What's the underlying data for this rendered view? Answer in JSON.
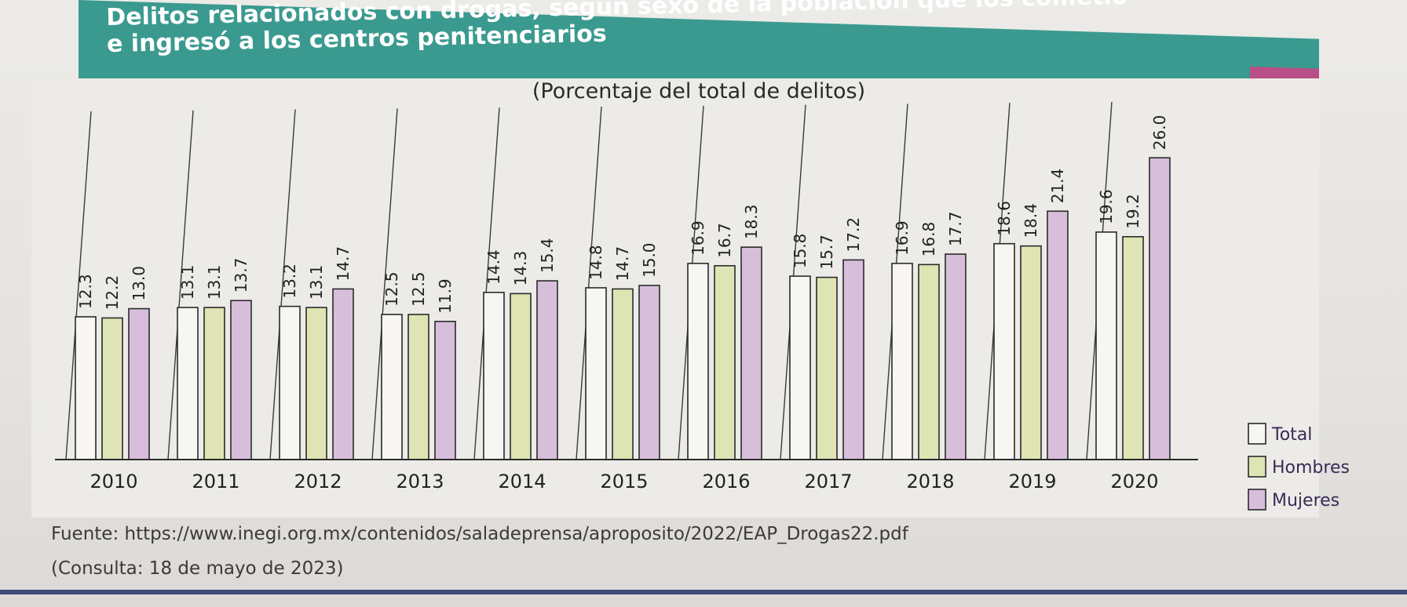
{
  "header": {
    "title_line1": "Delitos relacionados con drogas, según sexo de la población que los cometió",
    "title_line2": "e ingresó a los centros penitenciarios"
  },
  "colors": {
    "header_band": "#3b9a8f",
    "header_accent": "#b84f86",
    "total_fill": "#f7f6f3",
    "hombres_fill": "#dfe4b4",
    "mujeres_fill": "#d7bedb",
    "bar_stroke": "#2a2a2a",
    "rule": "#3f4a78"
  },
  "chart_data": {
    "type": "bar",
    "title": "(Porcentaje del total de delitos)",
    "categories": [
      "2010",
      "2011",
      "2012",
      "2013",
      "2014",
      "2015",
      "2016",
      "2017",
      "2018",
      "2019",
      "2020"
    ],
    "series": [
      {
        "name": "Total",
        "values": [
          12.3,
          13.1,
          13.2,
          12.5,
          14.4,
          14.8,
          16.9,
          15.8,
          16.9,
          18.6,
          19.6
        ]
      },
      {
        "name": "Hombres",
        "values": [
          12.2,
          13.1,
          13.1,
          12.5,
          14.3,
          14.7,
          16.7,
          15.7,
          16.8,
          18.4,
          19.2
        ]
      },
      {
        "name": "Mujeres",
        "values": [
          13.0,
          13.7,
          14.7,
          11.9,
          15.4,
          15.0,
          18.3,
          17.2,
          17.7,
          21.4,
          26.0
        ]
      }
    ],
    "value_labels": [
      [
        "12.3",
        "13.1",
        "13.2",
        "12.5",
        "14.4",
        "14.8",
        "16.9",
        "15.8",
        "16.9",
        "18.6",
        "19.6"
      ],
      [
        "12.2",
        "13.1",
        "13.1",
        "12.5",
        "14.3",
        "14.7",
        "16.7",
        "15.7",
        "16.8",
        "18.4",
        "19.2"
      ],
      [
        "13.0",
        "13.7",
        "14.7",
        "11.9",
        "15.4",
        "15.0",
        "18.3",
        "17.2",
        "17.7",
        "21.4",
        "26.0"
      ]
    ],
    "xlabel": "",
    "ylabel": "",
    "ylim": [
      0,
      30
    ],
    "legend": [
      "Total",
      "Hombres",
      "Mujeres"
    ],
    "legend_position": "bottom-right",
    "grid": false
  },
  "footer": {
    "source": "Fuente: https://www.inegi.org.mx/contenidos/saladeprensa/aproposito/2022/EAP_Drogas22.pdf",
    "consulta": "(Consulta: 18 de mayo de 2023)"
  }
}
